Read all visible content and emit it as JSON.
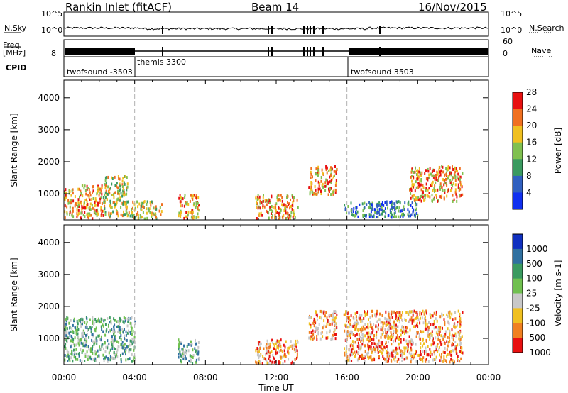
{
  "header": {
    "station": "Rankin Inlet (fitACF)",
    "beam": "Beam 14",
    "date": "16/Nov/2015"
  },
  "summary_panels": {
    "nsky_label": "N.Sky",
    "nsky_ticks": [
      "10^5",
      "10^0"
    ],
    "nsearch_label": "N.Search",
    "nsearch_ticks": [
      "10^5",
      "10^0"
    ],
    "freq_label": "Freq.",
    "freq_unit": "[MHz]",
    "freq_tick": "8",
    "nave_label": "Nave",
    "nave_ticks": [
      "60",
      "0"
    ],
    "cpid_label": "CPID",
    "cpid_segments": [
      "twofsound -3503",
      "themis 3300",
      "twofsound 3503"
    ]
  },
  "chart_data": [
    {
      "type": "heatmap",
      "name": "power-panel",
      "ylabel": "Slant Range [km]",
      "yticks": [
        1000,
        2000,
        3000,
        4000
      ],
      "ylim": [
        180,
        4550
      ],
      "xlim_hours": [
        0,
        24
      ],
      "colorbar_label": "Power [dB]",
      "colorbar_ticks": [
        4,
        8,
        12,
        16,
        20,
        24,
        28
      ],
      "colorbar_colors": [
        "#1030f0",
        "#3060c0",
        "#3a9a60",
        "#80c050",
        "#f0c020",
        "#f07020",
        "#e81010"
      ],
      "regions": [
        {
          "x": [
            0.0,
            1.0
          ],
          "y": [
            250,
            1200
          ],
          "level": "high"
        },
        {
          "x": [
            1.0,
            2.2
          ],
          "y": [
            250,
            1300
          ],
          "level": "high"
        },
        {
          "x": [
            2.2,
            3.6
          ],
          "y": [
            300,
            1600
          ],
          "level": "mid"
        },
        {
          "x": [
            3.6,
            5.5
          ],
          "y": [
            250,
            800
          ],
          "level": "mid"
        },
        {
          "x": [
            6.4,
            7.6
          ],
          "y": [
            250,
            1000
          ],
          "level": "high"
        },
        {
          "x": [
            10.8,
            13.2
          ],
          "y": [
            250,
            1000
          ],
          "level": "high"
        },
        {
          "x": [
            13.8,
            15.4
          ],
          "y": [
            1000,
            1900
          ],
          "level": "high"
        },
        {
          "x": [
            15.8,
            20.0
          ],
          "y": [
            300,
            800
          ],
          "level": "low"
        },
        {
          "x": [
            19.5,
            22.5
          ],
          "y": [
            800,
            1900
          ],
          "level": "high"
        }
      ]
    },
    {
      "type": "heatmap",
      "name": "velocity-panel",
      "ylabel": "Slant Range [km]",
      "xlabel": "Time UT",
      "xticks": [
        "00:00",
        "04:00",
        "08:00",
        "12:00",
        "16:00",
        "20:00",
        "00:00"
      ],
      "yticks": [
        1000,
        2000,
        3000,
        4000
      ],
      "ylim": [
        180,
        4550
      ],
      "xlim_hours": [
        0,
        24
      ],
      "colorbar_label": "Velocity [m s-1]",
      "colorbar_ticks": [
        "1000",
        "500",
        "100",
        "25",
        "-25",
        "-100",
        "-500",
        "-1000"
      ],
      "colorbar_colors": [
        "#1030c0",
        "#3070a0",
        "#3a9a60",
        "#70c050",
        "#c8c8c8",
        "#f0c020",
        "#f08020",
        "#e81010"
      ],
      "regions": [
        {
          "x": [
            0.0,
            4.0
          ],
          "y": [
            300,
            1700
          ],
          "level": "positive"
        },
        {
          "x": [
            6.4,
            7.6
          ],
          "y": [
            250,
            1000
          ],
          "level": "positive"
        },
        {
          "x": [
            10.8,
            13.2
          ],
          "y": [
            250,
            1000
          ],
          "level": "negative"
        },
        {
          "x": [
            13.8,
            15.4
          ],
          "y": [
            1000,
            1900
          ],
          "level": "negative"
        },
        {
          "x": [
            15.8,
            22.5
          ],
          "y": [
            300,
            1900
          ],
          "level": "negative"
        }
      ]
    }
  ]
}
